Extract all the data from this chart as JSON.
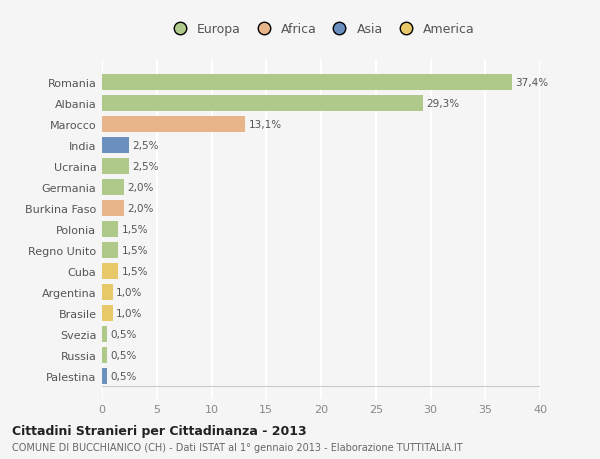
{
  "countries": [
    "Romania",
    "Albania",
    "Marocco",
    "India",
    "Ucraina",
    "Germania",
    "Burkina Faso",
    "Polonia",
    "Regno Unito",
    "Cuba",
    "Argentina",
    "Brasile",
    "Svezia",
    "Russia",
    "Palestina"
  ],
  "values": [
    37.4,
    29.3,
    13.1,
    2.5,
    2.5,
    2.0,
    2.0,
    1.5,
    1.5,
    1.5,
    1.0,
    1.0,
    0.5,
    0.5,
    0.5
  ],
  "labels": [
    "37,4%",
    "29,3%",
    "13,1%",
    "2,5%",
    "2,5%",
    "2,0%",
    "2,0%",
    "1,5%",
    "1,5%",
    "1,5%",
    "1,0%",
    "1,0%",
    "0,5%",
    "0,5%",
    "0,5%"
  ],
  "continents": [
    "Europa",
    "Europa",
    "Africa",
    "Asia",
    "Europa",
    "Europa",
    "Africa",
    "Europa",
    "Europa",
    "America",
    "America",
    "America",
    "Europa",
    "Europa",
    "Asia"
  ],
  "colors": {
    "Europa": "#aec98a",
    "Africa": "#e8b48a",
    "Asia": "#6b8fbf",
    "America": "#e8c96a"
  },
  "legend_order": [
    "Europa",
    "Africa",
    "Asia",
    "America"
  ],
  "legend_colors": [
    "#aec98a",
    "#e8b48a",
    "#6b8fbf",
    "#e8c96a"
  ],
  "xlim": [
    0,
    40
  ],
  "xticks": [
    0,
    5,
    10,
    15,
    20,
    25,
    30,
    35,
    40
  ],
  "title": "Cittadini Stranieri per Cittadinanza - 2013",
  "subtitle": "COMUNE DI BUCCHIANICO (CH) - Dati ISTAT al 1° gennaio 2013 - Elaborazione TUTTITALIA.IT",
  "bg_color": "#f5f5f5",
  "grid_color": "#ffffff",
  "bar_height": 0.75
}
